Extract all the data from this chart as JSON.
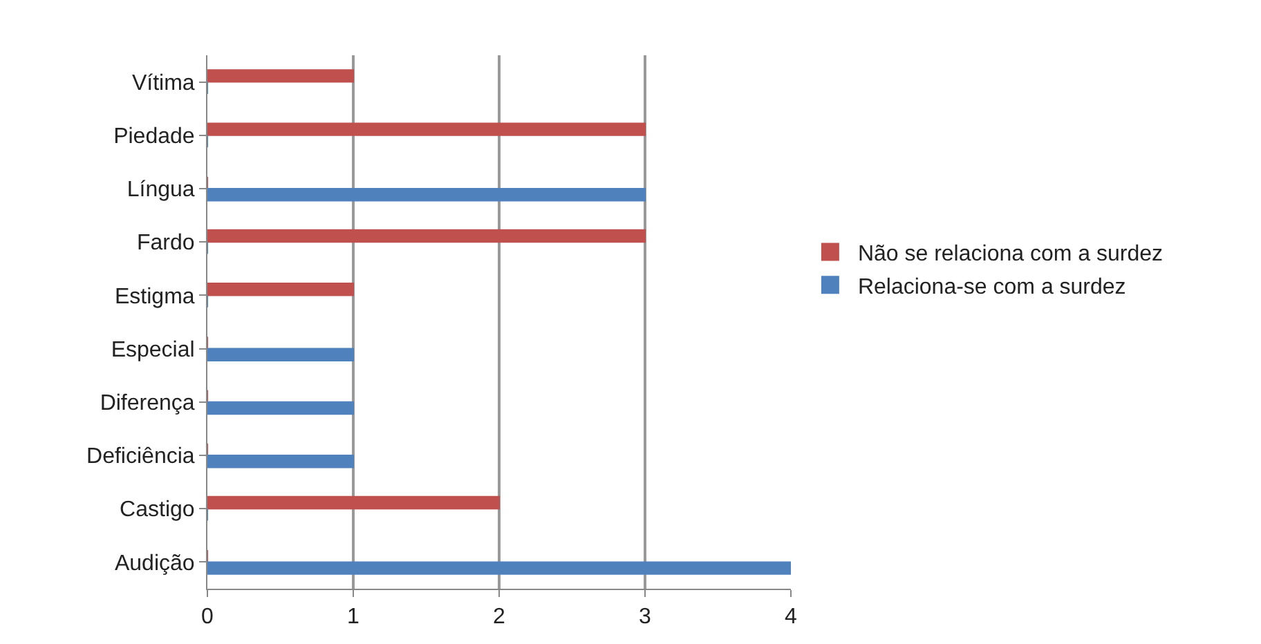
{
  "chart_data": {
    "type": "bar",
    "orientation": "horizontal",
    "categories": [
      "Vítima",
      "Piedade",
      "Língua",
      "Fardo",
      "Estigma",
      "Especial",
      "Diferença",
      "Deficiência",
      "Castigo",
      "Audição"
    ],
    "series": [
      {
        "name": "Não se relaciona com a surdez",
        "color": "#c0504d",
        "values": [
          1,
          3,
          0,
          3,
          1,
          0,
          0,
          0,
          2,
          0
        ]
      },
      {
        "name": "Relaciona-se com a surdez",
        "color": "#4f81bd",
        "values": [
          0,
          0,
          3,
          0,
          0,
          1,
          1,
          1,
          0,
          4
        ]
      }
    ],
    "xlim": [
      0,
      4
    ],
    "xticks": [
      0,
      1,
      2,
      3,
      4
    ],
    "grid": "x",
    "legend": "right"
  }
}
